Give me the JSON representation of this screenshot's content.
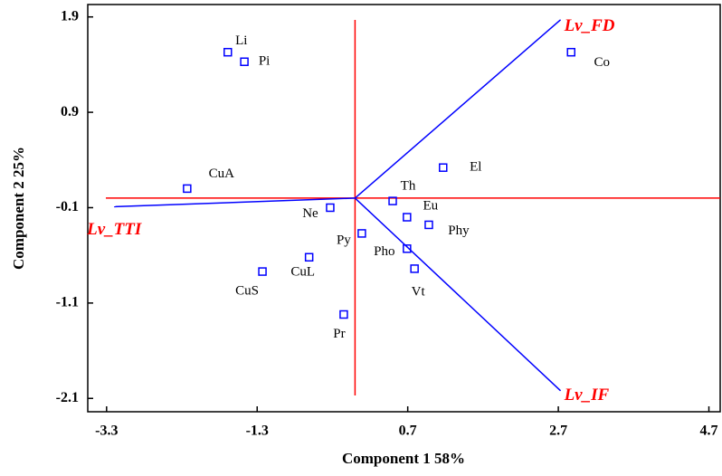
{
  "chart_data": {
    "type": "biplot",
    "x_label": "Component 1   58%",
    "y_label": "Component 2   25%",
    "xlim": [
      -3.55,
      4.85
    ],
    "ylim": [
      -2.24,
      2.03
    ],
    "xticks": [
      -3.3,
      -1.3,
      0.7,
      2.7,
      4.7
    ],
    "yticks": [
      1.9,
      0.9,
      -0.1,
      -1.1,
      -2.1
    ],
    "labels": [
      "Li",
      "Pi",
      "Co",
      "El",
      "CuA",
      "Th",
      "Ne",
      "Eu",
      "Phy",
      "Py",
      "Pho",
      "CuL",
      "CuS",
      "Vt",
      "Pr"
    ],
    "x": [
      -1.69,
      -1.47,
      2.87,
      1.17,
      -2.23,
      0.5,
      -0.33,
      0.69,
      0.98,
      0.09,
      0.69,
      -0.61,
      -1.23,
      0.79,
      -0.15
    ],
    "y": [
      1.53,
      1.43,
      1.53,
      0.32,
      0.1,
      -0.03,
      -0.1,
      -0.2,
      -0.28,
      -0.37,
      -0.53,
      -0.62,
      -0.77,
      -0.74,
      -1.22
    ],
    "color": "#0000ff",
    "vectors": [
      {
        "name": "Lv_FD",
        "x": 2.73,
        "y": 1.87
      },
      {
        "name": "Lv_IF",
        "x": 2.73,
        "y": -2.02
      },
      {
        "name": "Lv_TTI",
        "x": -3.2,
        "y": -0.09
      }
    ],
    "vector_color": "#0000ff",
    "vector_label_color": "#ff0000",
    "origin_line_color": "#ff0000"
  }
}
